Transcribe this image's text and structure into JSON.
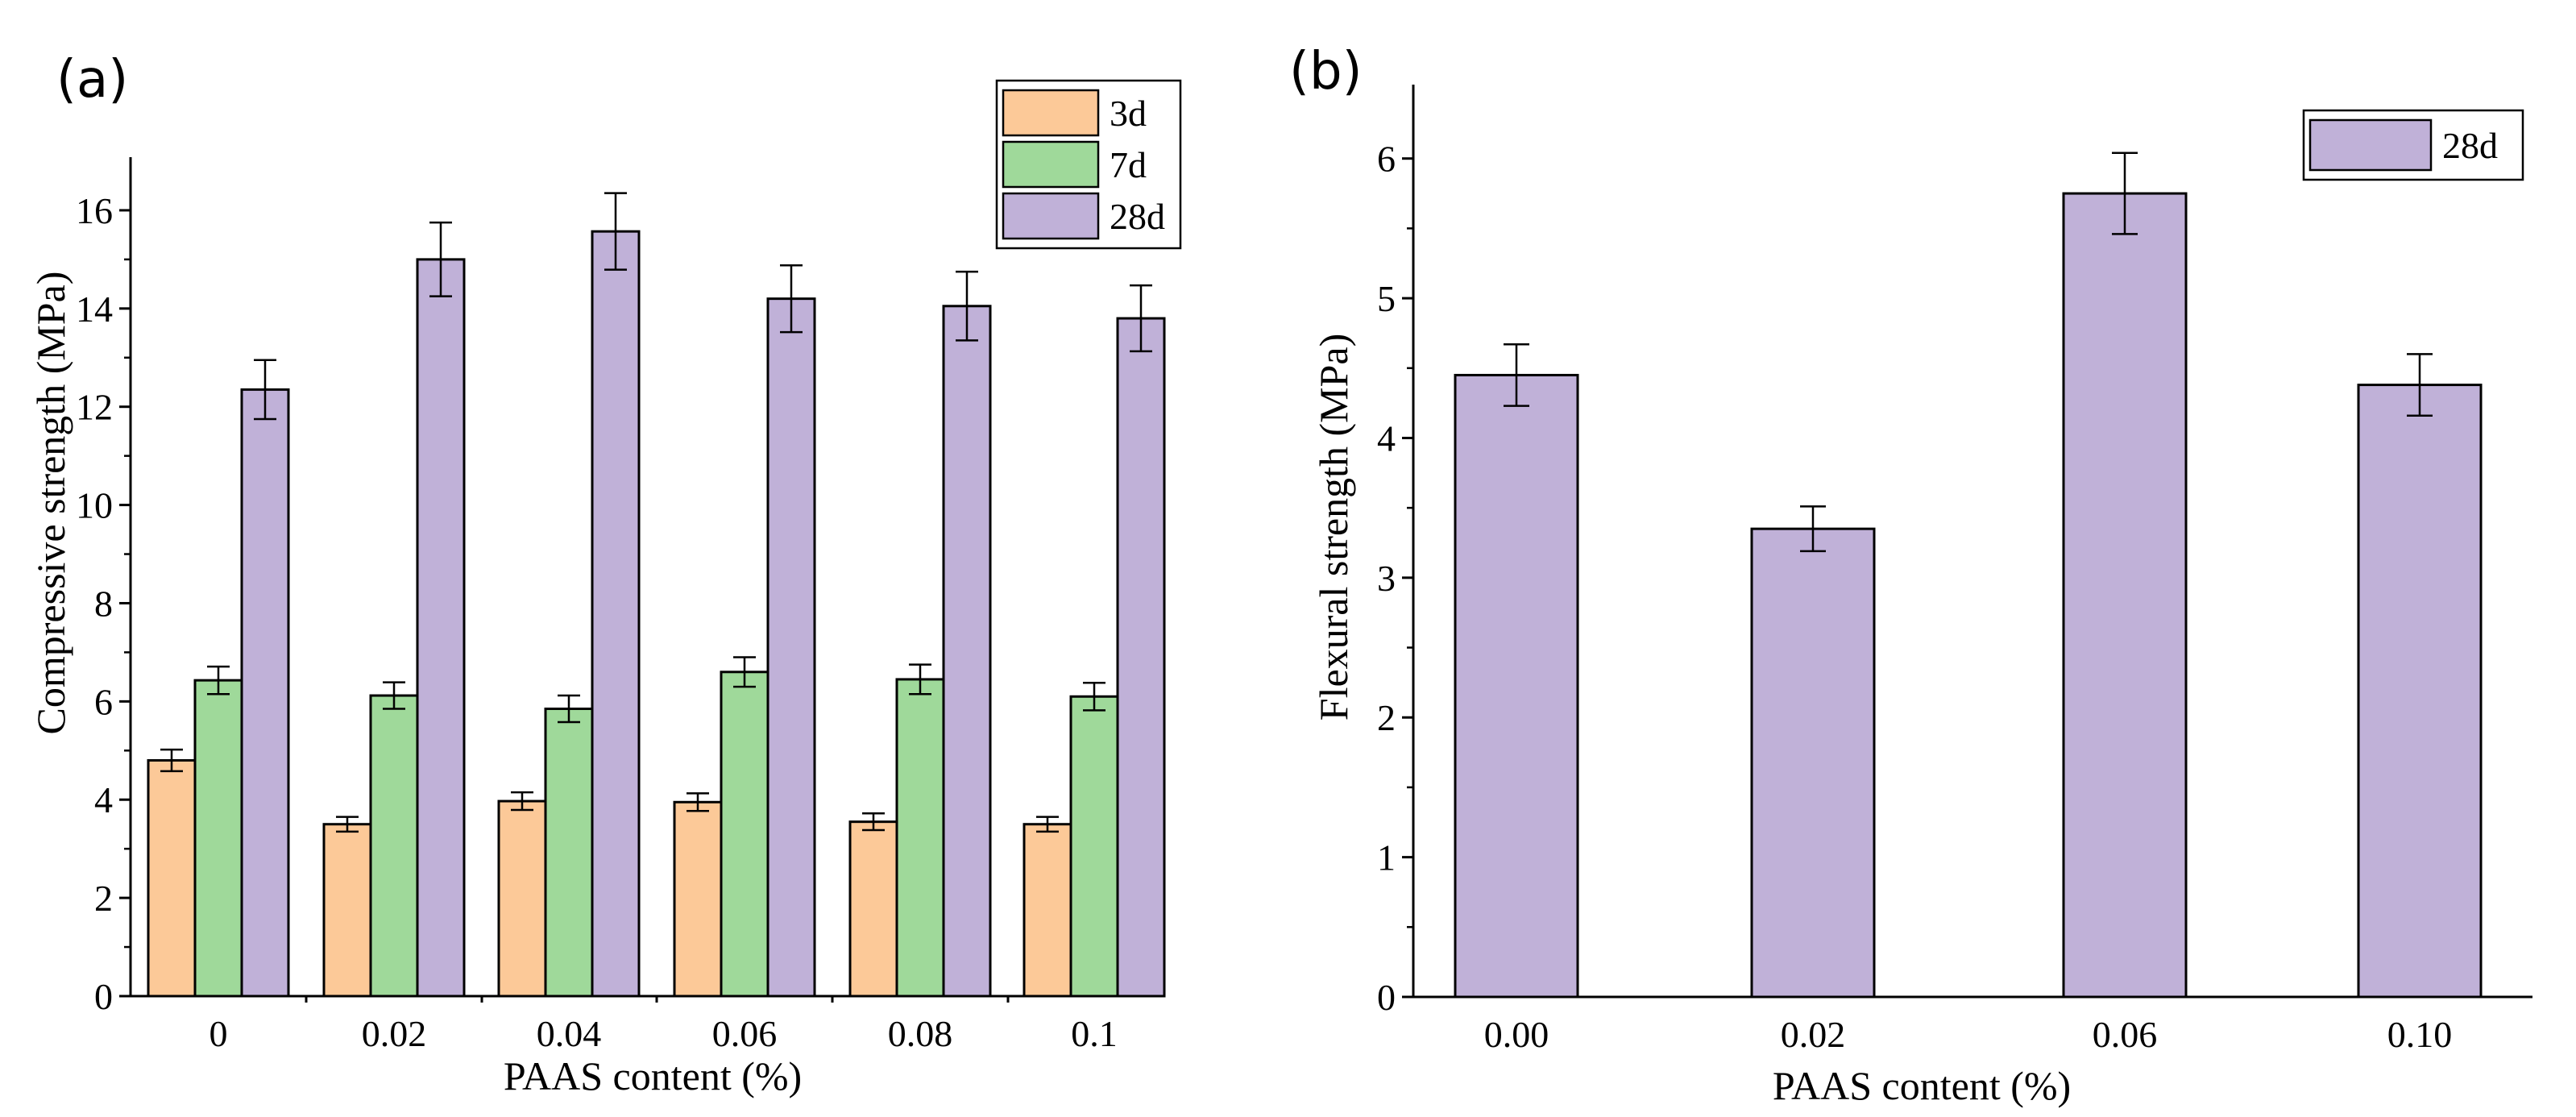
{
  "charts": [
    {
      "panel_label": "(a)",
      "chart_data": {
        "type": "bar",
        "title": "",
        "xlabel": "PAAS content (%)",
        "ylabel": "Compressive strength (MPa)",
        "categories": [
          "0",
          "0.02",
          "0.04",
          "0.06",
          "0.08",
          "0.1"
        ],
        "ylim": [
          0,
          17
        ],
        "yticks": [
          "0",
          "2",
          "4",
          "6",
          "8",
          "10",
          "12",
          "14",
          "16"
        ],
        "grid": false,
        "legend_position": "top-right",
        "series": [
          {
            "name": "3d",
            "color": "#fcc998",
            "values": [
              4.8,
              3.5,
              3.97,
              3.95,
              3.55,
              3.5
            ],
            "errors": [
              0.22,
              0.15,
              0.18,
              0.18,
              0.17,
              0.15
            ]
          },
          {
            "name": "7d",
            "color": "#9fd99a",
            "values": [
              6.43,
              6.12,
              5.85,
              6.6,
              6.45,
              6.1
            ],
            "errors": [
              0.28,
              0.27,
              0.27,
              0.3,
              0.3,
              0.28
            ]
          },
          {
            "name": "28d",
            "color": "#c0b1d8",
            "values": [
              12.35,
              15.0,
              15.57,
              14.2,
              14.05,
              13.8
            ],
            "errors": [
              0.6,
              0.75,
              0.78,
              0.68,
              0.7,
              0.67
            ]
          }
        ]
      }
    },
    {
      "panel_label": "(b)",
      "chart_data": {
        "type": "bar",
        "title": "",
        "xlabel": "PAAS content (%)",
        "ylabel": "Flexural strength (MPa)",
        "categories": [
          "0.00",
          "0.02",
          "0.06",
          "0.10"
        ],
        "ylim": [
          0,
          6.5
        ],
        "yticks": [
          "0",
          "1",
          "2",
          "3",
          "4",
          "5",
          "6"
        ],
        "grid": false,
        "legend_position": "top-right",
        "series": [
          {
            "name": "28d",
            "color": "#c0b1d8",
            "values": [
              4.45,
              3.35,
              5.75,
              4.38
            ],
            "errors": [
              0.22,
              0.16,
              0.29,
              0.22
            ]
          }
        ]
      }
    }
  ]
}
